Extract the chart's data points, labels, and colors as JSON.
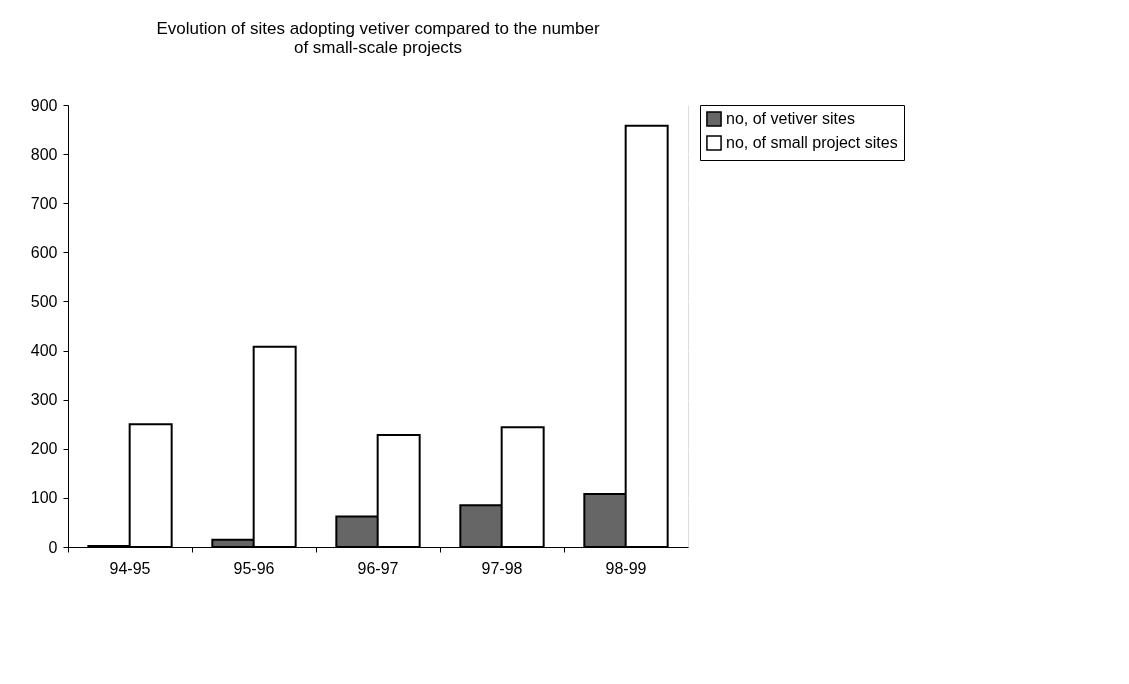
{
  "chart_data": {
    "type": "bar",
    "title": [
      "Evolution of sites adopting vetiver compared to the number",
      "of small-scale projects"
    ],
    "categories": [
      "94-95",
      "95-96",
      "96-97",
      "97-98",
      "98-99"
    ],
    "series": [
      {
        "name": "no, of vetiver sites",
        "color": "#666666",
        "values": [
          2,
          15,
          62,
          85,
          108
        ]
      },
      {
        "name": "no, of small project sites",
        "color": "#ffffff",
        "values": [
          250,
          408,
          228,
          244,
          858
        ]
      }
    ],
    "ylim": [
      0,
      900
    ],
    "yticks": [
      0,
      100,
      200,
      300,
      400,
      500,
      600,
      700,
      800,
      900
    ],
    "grid": "y",
    "legend": "right"
  }
}
